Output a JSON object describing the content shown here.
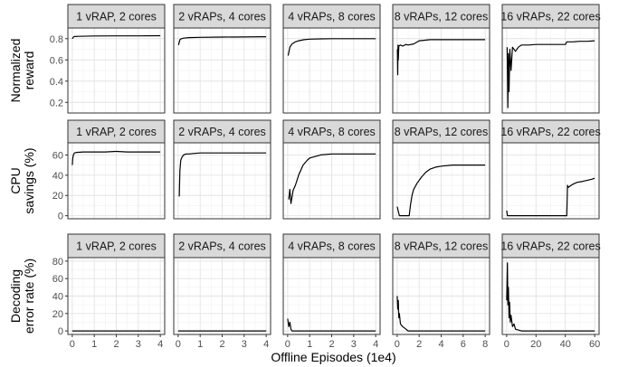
{
  "chart_data": {
    "type": "line",
    "xlabel": "Offline Episodes (1e4)",
    "rows": [
      {
        "ylabel": [
          "Normalized",
          "reward"
        ],
        "ylim": [
          0.1,
          0.9
        ],
        "yticks": [
          0.2,
          0.4,
          0.6,
          0.8
        ],
        "ytick_labels": [
          "0.2",
          "0.4",
          "0.6",
          "0.8"
        ]
      },
      {
        "ylabel": [
          "CPU",
          "savings (%)"
        ],
        "ylim": [
          -3,
          72
        ],
        "yticks": [
          0,
          20,
          40,
          60
        ],
        "ytick_labels": [
          "0",
          "20",
          "40",
          "60"
        ]
      },
      {
        "ylabel": [
          "Decoding",
          "error rate (%)"
        ],
        "ylim": [
          -4,
          84
        ],
        "yticks": [
          0,
          20,
          40,
          60,
          80
        ],
        "ytick_labels": [
          "0",
          "20",
          "40",
          "60",
          "80"
        ]
      }
    ],
    "columns": [
      {
        "label": "1 vRAP, 2 cores",
        "xlim": [
          -0.2,
          4.2
        ],
        "xticks": [
          0,
          1,
          2,
          3,
          4
        ],
        "xtick_labels": [
          "0",
          "1",
          "2",
          "3",
          "4"
        ]
      },
      {
        "label": "2 vRAPs, 4 cores",
        "xlim": [
          -0.2,
          4.2
        ],
        "xticks": [
          0,
          1,
          2,
          3,
          4
        ],
        "xtick_labels": [
          "0",
          "1",
          "2",
          "3",
          "4"
        ]
      },
      {
        "label": "4 vRAPs, 8 cores",
        "xlim": [
          -0.2,
          4.2
        ],
        "xticks": [
          0,
          1,
          2,
          3,
          4
        ],
        "xtick_labels": [
          "0",
          "1",
          "2",
          "3",
          "4"
        ]
      },
      {
        "label": "8 vRAPs, 12 cores",
        "xlim": [
          -0.4,
          8.4
        ],
        "xticks": [
          0,
          2,
          4,
          6,
          8
        ],
        "xtick_labels": [
          "0",
          "2",
          "4",
          "6",
          "8"
        ]
      },
      {
        "label": "16 vRAPs, 22 cores",
        "xlim": [
          -3,
          63
        ],
        "xticks": [
          0,
          20,
          40,
          60
        ],
        "xtick_labels": [
          "0",
          "20",
          "40",
          "60"
        ]
      }
    ],
    "series": [
      [
        {
          "x": [
            0,
            0.05,
            0.1,
            0.3,
            1,
            2,
            3,
            4
          ],
          "y": [
            0.8,
            0.815,
            0.82,
            0.822,
            0.825,
            0.826,
            0.826,
            0.828
          ]
        },
        {
          "x": [
            0.02,
            0.08,
            0.15,
            0.25,
            0.5,
            1,
            2,
            3,
            4
          ],
          "y": [
            0.74,
            0.79,
            0.8,
            0.805,
            0.81,
            0.812,
            0.815,
            0.816,
            0.818
          ]
        },
        {
          "x": [
            0.02,
            0.1,
            0.2,
            0.35,
            0.5,
            0.75,
            1,
            1.5,
            2,
            3,
            4
          ],
          "y": [
            0.64,
            0.72,
            0.75,
            0.77,
            0.78,
            0.79,
            0.795,
            0.798,
            0.8,
            0.8,
            0.8
          ]
        },
        {
          "x": [
            0.02,
            0.05,
            0.08,
            0.1,
            0.15,
            0.3,
            0.5,
            0.8,
            1,
            1.5,
            2,
            3,
            4,
            6,
            8
          ],
          "y": [
            0.7,
            0.46,
            0.74,
            0.6,
            0.73,
            0.74,
            0.73,
            0.745,
            0.74,
            0.75,
            0.78,
            0.79,
            0.79,
            0.79,
            0.79
          ]
        },
        {
          "x": [
            0.3,
            0.8,
            1.2,
            1.6,
            2.2,
            3,
            4,
            6,
            8,
            10,
            15,
            20,
            30,
            40,
            41,
            45,
            50,
            55,
            60
          ],
          "y": [
            0.72,
            0.15,
            0.66,
            0.3,
            0.7,
            0.5,
            0.72,
            0.68,
            0.72,
            0.74,
            0.74,
            0.745,
            0.745,
            0.745,
            0.77,
            0.77,
            0.775,
            0.775,
            0.78
          ]
        }
      ],
      [
        {
          "x": [
            0,
            0.02,
            0.05,
            0.1,
            0.2,
            0.5,
            1,
            1.5,
            2,
            2.5,
            3,
            3.5,
            4
          ],
          "y": [
            50,
            56,
            60,
            62,
            62.5,
            63,
            63,
            63,
            63.5,
            63,
            63,
            63,
            63
          ]
        },
        {
          "x": [
            0.05,
            0.08,
            0.12,
            0.18,
            0.25,
            0.35,
            0.5,
            0.7,
            1,
            1.5,
            2,
            3,
            4
          ],
          "y": [
            19,
            45,
            55,
            58,
            60,
            61,
            61,
            61.5,
            62,
            62,
            62,
            62,
            62
          ]
        },
        {
          "x": [
            0.05,
            0.1,
            0.15,
            0.25,
            0.35,
            0.5,
            0.7,
            0.9,
            1,
            1.5,
            2,
            3,
            4
          ],
          "y": [
            16,
            26,
            12,
            25,
            30,
            40,
            50,
            55,
            57,
            60,
            61,
            61,
            61
          ]
        },
        {
          "x": [
            0,
            0.2,
            0.21,
            1.1,
            1.2,
            1.35,
            1.5,
            1.8,
            2.2,
            2.6,
            3,
            3.5,
            4,
            5,
            6,
            7,
            8
          ],
          "y": [
            9,
            0,
            0,
            0,
            10,
            20,
            26,
            32,
            38,
            43,
            46,
            48,
            49,
            50,
            50,
            50,
            50
          ]
        },
        {
          "x": [
            0,
            0.5,
            1,
            5,
            10,
            20,
            30,
            41,
            41.5,
            42,
            45,
            48,
            52,
            55,
            58,
            60
          ],
          "y": [
            5,
            0,
            0,
            0,
            0,
            0,
            0,
            0,
            30,
            28,
            31,
            33,
            34,
            35,
            36,
            37
          ]
        }
      ],
      [
        {
          "x": [
            0,
            1,
            2,
            3,
            4
          ],
          "y": [
            0,
            0,
            0,
            0,
            0
          ]
        },
        {
          "x": [
            0,
            1,
            2,
            3,
            4
          ],
          "y": [
            0,
            0,
            0,
            0,
            0
          ]
        },
        {
          "x": [
            0,
            0.05,
            0.1,
            0.15,
            0.2,
            1,
            2,
            3,
            4
          ],
          "y": [
            14,
            5,
            10,
            2,
            0,
            0,
            0,
            0,
            0
          ]
        },
        {
          "x": [
            0,
            0.05,
            0.1,
            0.15,
            0.2,
            0.3,
            0.5,
            0.7,
            1,
            2,
            4,
            6,
            8
          ],
          "y": [
            40,
            25,
            35,
            15,
            20,
            8,
            5,
            3,
            0,
            0,
            0,
            0,
            0
          ]
        },
        {
          "x": [
            0,
            0.5,
            0.8,
            1.2,
            1.6,
            2,
            2.5,
            3,
            4,
            5,
            6,
            10,
            20,
            40,
            60
          ],
          "y": [
            35,
            78,
            30,
            50,
            15,
            33,
            10,
            18,
            5,
            8,
            2,
            0,
            0,
            0,
            0
          ]
        }
      ]
    ]
  }
}
